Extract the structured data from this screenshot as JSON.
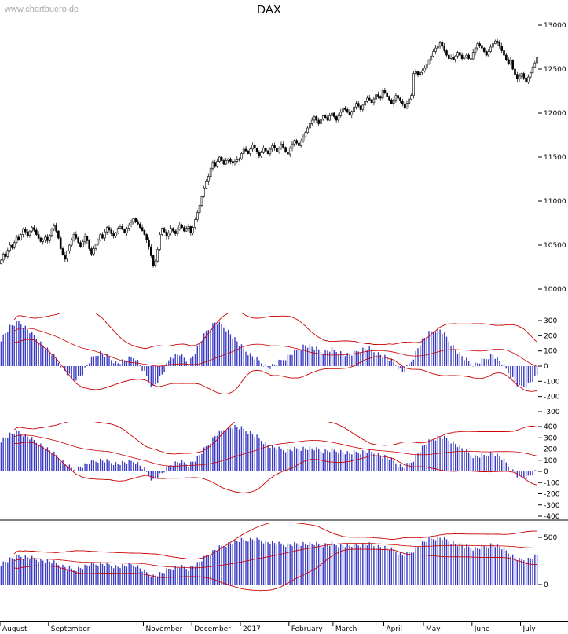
{
  "watermark": "www.chartbuero.de",
  "title": "DAX",
  "colors": {
    "candles": "#000000",
    "bars": "#3b3bc4",
    "bands": "#cc0000",
    "axis": "#000000",
    "watermark": "#a9a9a9"
  },
  "axis": {
    "months": [
      {
        "label": "August",
        "day": 0
      },
      {
        "label": "September",
        "day": 22
      },
      {
        "label": "",
        "day": 44
      },
      {
        "label": "November",
        "day": 65
      },
      {
        "label": "December",
        "day": 87
      },
      {
        "label": "2017",
        "day": 109
      },
      {
        "label": "February",
        "day": 131
      },
      {
        "label": "March",
        "day": 151
      },
      {
        "label": "April",
        "day": 174
      },
      {
        "label": "May",
        "day": 192
      },
      {
        "label": "June",
        "day": 214
      },
      {
        "label": "July",
        "day": 236
      }
    ]
  },
  "chart_data": [
    {
      "type": "candlestick",
      "title": "DAX",
      "ylabel": "",
      "xlabel": "",
      "ylim": [
        10000,
        13000
      ],
      "yticks": [
        13000,
        12500,
        12000,
        11500,
        11000,
        10500,
        10000
      ],
      "x_range": "August 2016 - July 2017",
      "closes": [
        10330,
        10400,
        10370,
        10440,
        10500,
        10470,
        10530,
        10590,
        10560,
        10620,
        10680,
        10650,
        10610,
        10660,
        10700,
        10670,
        10620,
        10580,
        10540,
        10560,
        10590,
        10550,
        10610,
        10680,
        10720,
        10660,
        10580,
        10460,
        10390,
        10340,
        10430,
        10500,
        10560,
        10620,
        10580,
        10530,
        10480,
        10540,
        10600,
        10550,
        10460,
        10400,
        10460,
        10510,
        10560,
        10620,
        10580,
        10650,
        10700,
        10670,
        10630,
        10600,
        10640,
        10690,
        10710,
        10680,
        10640,
        10690,
        10730,
        10760,
        10800,
        10770,
        10740,
        10700,
        10665,
        10620,
        10560,
        10480,
        10380,
        10270,
        10320,
        10450,
        10620,
        10690,
        10650,
        10600,
        10640,
        10690,
        10660,
        10630,
        10680,
        10730,
        10700,
        10660,
        10690,
        10710,
        10640,
        10700,
        10790,
        10870,
        10950,
        11050,
        11150,
        11220,
        11280,
        11370,
        11440,
        11400,
        11450,
        11500,
        11460,
        11420,
        11460,
        11480,
        11450,
        11430,
        11450,
        11470,
        11480,
        11540,
        11590,
        11570,
        11540,
        11590,
        11640,
        11600,
        11560,
        11510,
        11550,
        11600,
        11570,
        11540,
        11590,
        11630,
        11600,
        11560,
        11600,
        11650,
        11610,
        11560,
        11535,
        11600,
        11650,
        11690,
        11660,
        11630,
        11680,
        11730,
        11780,
        11830,
        11880,
        11920,
        11960,
        11920,
        11880,
        11930,
        11970,
        11950,
        11920,
        11970,
        12000,
        11960,
        11920,
        11970,
        12010,
        12060,
        12040,
        12010,
        11980,
        12020,
        12070,
        12110,
        12080,
        12040,
        12090,
        12130,
        12170,
        12150,
        12120,
        12160,
        12210,
        12190,
        12170,
        12260,
        12230,
        12190,
        12150,
        12110,
        12150,
        12200,
        12170,
        12140,
        12100,
        12060,
        12110,
        12160,
        12200,
        12450,
        12470,
        12440,
        12460,
        12480,
        12510,
        12560,
        12600,
        12650,
        12700,
        12740,
        12760,
        12800,
        12760,
        12710,
        12660,
        12620,
        12640,
        12610,
        12650,
        12690,
        12660,
        12620,
        12640,
        12660,
        12620,
        12615,
        12690,
        12740,
        12790,
        12770,
        12740,
        12700,
        12660,
        12700,
        12750,
        12790,
        12820,
        12800,
        12760,
        12710,
        12660,
        12610,
        12560,
        12600,
        12500,
        12440,
        12390,
        12420,
        12450,
        12400,
        12350,
        12410,
        12460,
        12520,
        12570,
        12630
      ]
    },
    {
      "type": "bar",
      "name": "short-oscillator-with-bands",
      "ylim": [
        -300,
        300
      ],
      "yticks": [
        300,
        200,
        100,
        0,
        -100,
        -200,
        -300
      ],
      "band": {
        "window": 40,
        "mult": 2.0
      },
      "anchors_every_4_days": [
        180,
        260,
        290,
        240,
        180,
        120,
        60,
        -20,
        -90,
        -60,
        40,
        90,
        60,
        20,
        40,
        60,
        -40,
        -140,
        -60,
        60,
        80,
        20,
        120,
        230,
        290,
        260,
        190,
        120,
        70,
        30,
        -10,
        20,
        60,
        100,
        140,
        120,
        90,
        110,
        90,
        70,
        100,
        120,
        90,
        60,
        20,
        -40,
        40,
        160,
        220,
        250,
        180,
        100,
        40,
        10,
        40,
        80,
        20,
        -60,
        -140,
        -120,
        -60
      ]
    },
    {
      "type": "bar",
      "name": "medium-oscillator-with-bands",
      "ylim": [
        -400,
        400
      ],
      "yticks": [
        400,
        300,
        200,
        100,
        0,
        -100,
        -200,
        -300,
        -400
      ],
      "band": {
        "window": 50,
        "mult": 2.2
      },
      "anchors_every_4_days": [
        280,
        330,
        350,
        310,
        260,
        210,
        150,
        80,
        20,
        40,
        80,
        100,
        90,
        70,
        80,
        90,
        20,
        -80,
        -20,
        60,
        90,
        60,
        120,
        220,
        320,
        380,
        400,
        380,
        340,
        290,
        230,
        200,
        190,
        200,
        210,
        200,
        180,
        190,
        180,
        160,
        170,
        180,
        160,
        130,
        90,
        30,
        90,
        200,
        270,
        310,
        290,
        240,
        180,
        130,
        140,
        170,
        120,
        30,
        -60,
        -50,
        10
      ]
    },
    {
      "type": "bar",
      "name": "long-oscillator-with-bands",
      "ylim": [
        -500,
        500
      ],
      "yticks": [
        500,
        0
      ],
      "band": {
        "window": 60,
        "mult": 2.5
      },
      "anchors_every_4_days": [
        220,
        270,
        300,
        290,
        270,
        250,
        230,
        190,
        160,
        180,
        210,
        220,
        210,
        190,
        200,
        210,
        140,
        90,
        120,
        170,
        190,
        170,
        220,
        300,
        370,
        420,
        450,
        470,
        480,
        470,
        450,
        430,
        420,
        430,
        440,
        430,
        420,
        430,
        420,
        410,
        420,
        430,
        410,
        390,
        360,
        310,
        350,
        430,
        480,
        500,
        470,
        430,
        400,
        380,
        400,
        430,
        390,
        320,
        260,
        270,
        310
      ]
    }
  ]
}
